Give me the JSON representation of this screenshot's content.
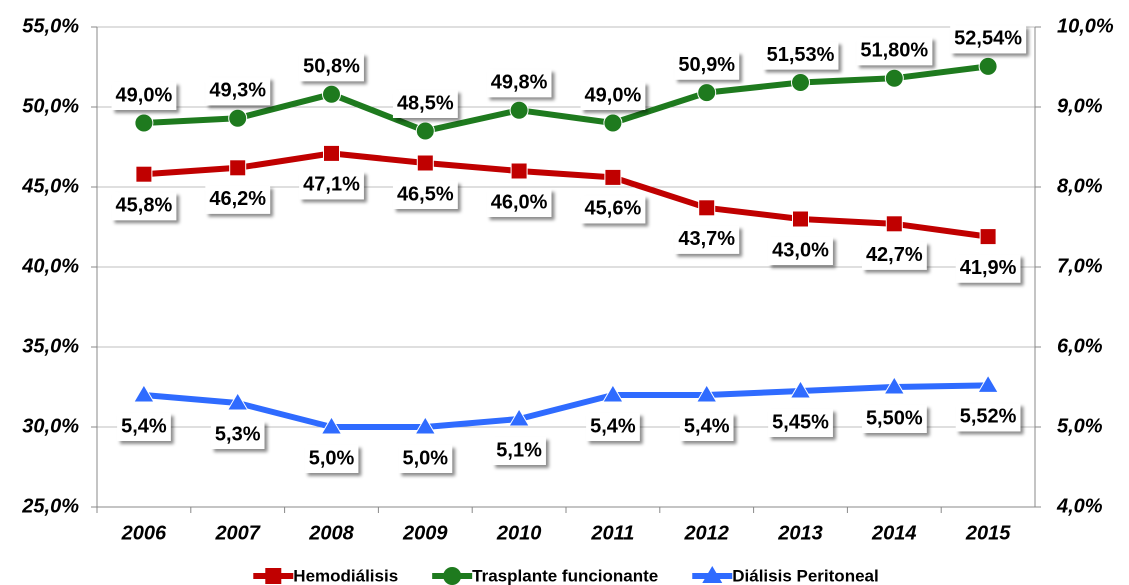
{
  "chart_data": {
    "type": "line",
    "categories": [
      "2006",
      "2007",
      "2008",
      "2009",
      "2010",
      "2011",
      "2012",
      "2013",
      "2014",
      "2015"
    ],
    "ylim": [
      25,
      55
    ],
    "yticks": [
      {
        "value": 25,
        "label": "25,0%"
      },
      {
        "value": 30,
        "label": "30,0%"
      },
      {
        "value": 35,
        "label": "35,0%"
      },
      {
        "value": 40,
        "label": "40,0%"
      },
      {
        "value": 45,
        "label": "45,0%"
      },
      {
        "value": 50,
        "label": "50,0%"
      },
      {
        "value": 55,
        "label": "55,0%"
      }
    ],
    "y2lim": [
      4,
      10
    ],
    "y2ticks": [
      {
        "value": 4,
        "label": "4,0%"
      },
      {
        "value": 5,
        "label": "5,0%"
      },
      {
        "value": 6,
        "label": "6,0%"
      },
      {
        "value": 7,
        "label": "7,0%"
      },
      {
        "value": 8,
        "label": "8,0%"
      },
      {
        "value": 9,
        "label": "9,0%"
      },
      {
        "value": 10,
        "label": "10,0%"
      }
    ],
    "grid": true,
    "legend": "bottom",
    "series": [
      {
        "name": "Hemodiálisis",
        "color": "#c00000",
        "marker": "square",
        "label_position": "below",
        "values": [
          45.8,
          46.2,
          47.1,
          46.5,
          46.0,
          45.6,
          43.7,
          43.0,
          42.7,
          41.9
        ],
        "value_labels": [
          "45,8%",
          "46,2%",
          "47,1%",
          "46,5%",
          "46,0%",
          "45,6%",
          "43,7%",
          "43,0%",
          "42,7%",
          "41,9%"
        ]
      },
      {
        "name": "Trasplante funcionante",
        "color": "#1e7a1e",
        "marker": "circle",
        "label_position": "above",
        "values": [
          49.0,
          49.3,
          50.8,
          48.5,
          49.8,
          49.0,
          50.9,
          51.53,
          51.8,
          52.54
        ],
        "value_labels": [
          "49,0%",
          "49,3%",
          "50,8%",
          "48,5%",
          "49,8%",
          "49,0%",
          "50,9%",
          "51,53%",
          "51,80%",
          "52,54%"
        ]
      },
      {
        "name": "Diálisis Peritoneal",
        "color": "#2f6bff",
        "marker": "triangle",
        "axis": "y2",
        "label_position": "below",
        "values": [
          5.4,
          5.3,
          5.0,
          5.0,
          5.1,
          5.4,
          5.4,
          5.45,
          5.5,
          5.52
        ],
        "value_labels": [
          "5,4%",
          "5,3%",
          "5,0%",
          "5,0%",
          "5,1%",
          "5,4%",
          "5,4%",
          "5,45%",
          "5,50%",
          "5,52%"
        ]
      }
    ]
  }
}
